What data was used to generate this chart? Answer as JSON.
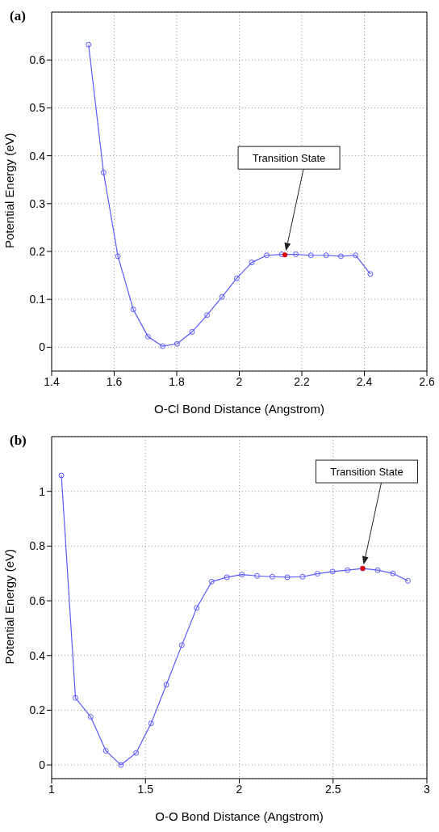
{
  "chart_data": [
    {
      "type": "line",
      "title": "(a)",
      "xlabel": "O-Cl Bond Distance (Angstrom)",
      "ylabel": "Potential Energy (eV)",
      "xlim": [
        1.4,
        2.6
      ],
      "xticks": [
        1.4,
        1.6,
        1.8,
        2,
        2.2,
        2.4,
        2.6
      ],
      "ylim": [
        -0.05,
        0.7
      ],
      "yticks": [
        0,
        0.1,
        0.2,
        0.3,
        0.4,
        0.5,
        0.6
      ],
      "grid": true,
      "marker": "circle",
      "line_style": "solid",
      "series": [
        {
          "color": "#5a5aff",
          "x": [
            1.518,
            1.566,
            1.612,
            1.661,
            1.708,
            1.755,
            1.801,
            1.849,
            1.897,
            1.945,
            1.992,
            2.04,
            2.088,
            2.136,
            2.181,
            2.229,
            2.278,
            2.325,
            2.372,
            2.419
          ],
          "values": [
            0.632,
            0.365,
            0.19,
            0.079,
            0.022,
            0.002,
            0.007,
            0.032,
            0.067,
            0.105,
            0.144,
            0.177,
            0.192,
            0.194,
            0.194,
            0.192,
            0.192,
            0.19,
            0.192,
            0.153
          ]
        },
        {
          "type": "scatter",
          "color": "#e00000",
          "x": [
            2.146
          ],
          "values": [
            0.193
          ]
        }
      ],
      "annotations": [
        "Transition State"
      ]
    },
    {
      "type": "line",
      "title": "(b)",
      "xlabel": "O-O Bond Distance (Angstrom)",
      "ylabel": "Potential Energy (eV)",
      "xlim": [
        1,
        3
      ],
      "xticks": [
        1,
        1.5,
        2,
        2.5,
        3
      ],
      "ylim": [
        -0.05,
        1.2
      ],
      "yticks": [
        0,
        0.2,
        0.4,
        0.6,
        0.8,
        1
      ],
      "grid": true,
      "marker": "circle",
      "line_style": "solid",
      "series": [
        {
          "color": "#5a5aff",
          "x": [
            1.052,
            1.127,
            1.208,
            1.289,
            1.369,
            1.45,
            1.53,
            1.611,
            1.694,
            1.773,
            1.853,
            1.934,
            2.014,
            2.095,
            2.176,
            2.256,
            2.337,
            2.417,
            2.498,
            2.577,
            2.658,
            2.738,
            2.819,
            2.899
          ],
          "values": [
            1.058,
            0.245,
            0.176,
            0.052,
            0.0,
            0.044,
            0.152,
            0.293,
            0.438,
            0.574,
            0.67,
            0.686,
            0.696,
            0.691,
            0.688,
            0.686,
            0.688,
            0.699,
            0.707,
            0.712,
            0.718,
            0.712,
            0.7,
            0.673
          ]
        },
        {
          "type": "scatter",
          "color": "#e00000",
          "x": [
            2.658
          ],
          "values": [
            0.718
          ]
        }
      ],
      "annotations": [
        "Transition State"
      ]
    }
  ]
}
